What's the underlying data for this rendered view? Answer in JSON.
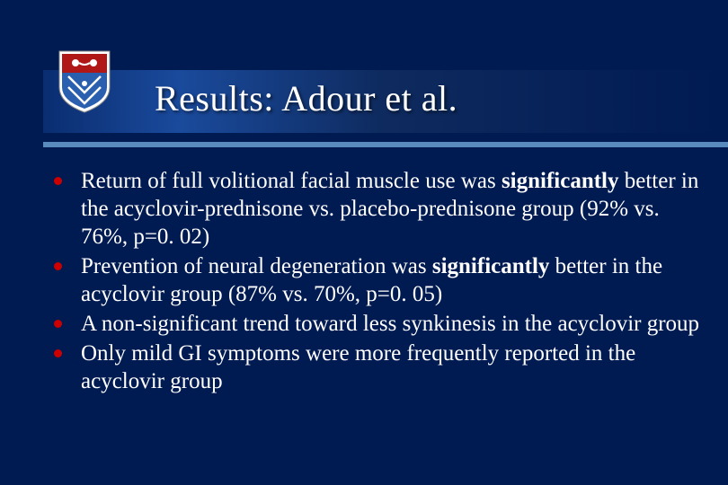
{
  "slide": {
    "background_color": "#001a52",
    "title_bar_gradient": [
      "#0a2d70",
      "#1a4a9c",
      "#0e2a5e",
      "#001a52"
    ],
    "divider_color": "#5a8bbf",
    "title": "Results: Adour et al.",
    "title_fontsize": 40,
    "title_color": "#ffffff",
    "bullet_color": "#cc0000",
    "body_fontsize": 25,
    "body_color": "#ffffff",
    "logo": {
      "shield_top_color": "#b01818",
      "shield_bottom_color": "#2a5fb0",
      "shield_outline": "#ffffff",
      "emblem_color": "#ffffff"
    },
    "bullets": [
      {
        "segments": [
          {
            "text": "Return of full volitional facial muscle use was ",
            "bold": false
          },
          {
            "text": "significantly",
            "bold": true
          },
          {
            "text": " better in the acyclovir-prednisone vs. placebo-prednisone group (92% vs. 76%, p=0. 02)",
            "bold": false
          }
        ]
      },
      {
        "segments": [
          {
            "text": "Prevention of neural degeneration was ",
            "bold": false
          },
          {
            "text": "significantly",
            "bold": true
          },
          {
            "text": " better in the acyclovir group (87% vs. 70%, p=0. 05)",
            "bold": false
          }
        ]
      },
      {
        "segments": [
          {
            "text": "A non-significant trend toward less synkinesis in the acyclovir group",
            "bold": false
          }
        ]
      },
      {
        "segments": [
          {
            "text": "Only mild GI symptoms were more frequently reported in the acyclovir group",
            "bold": false
          }
        ]
      }
    ]
  }
}
